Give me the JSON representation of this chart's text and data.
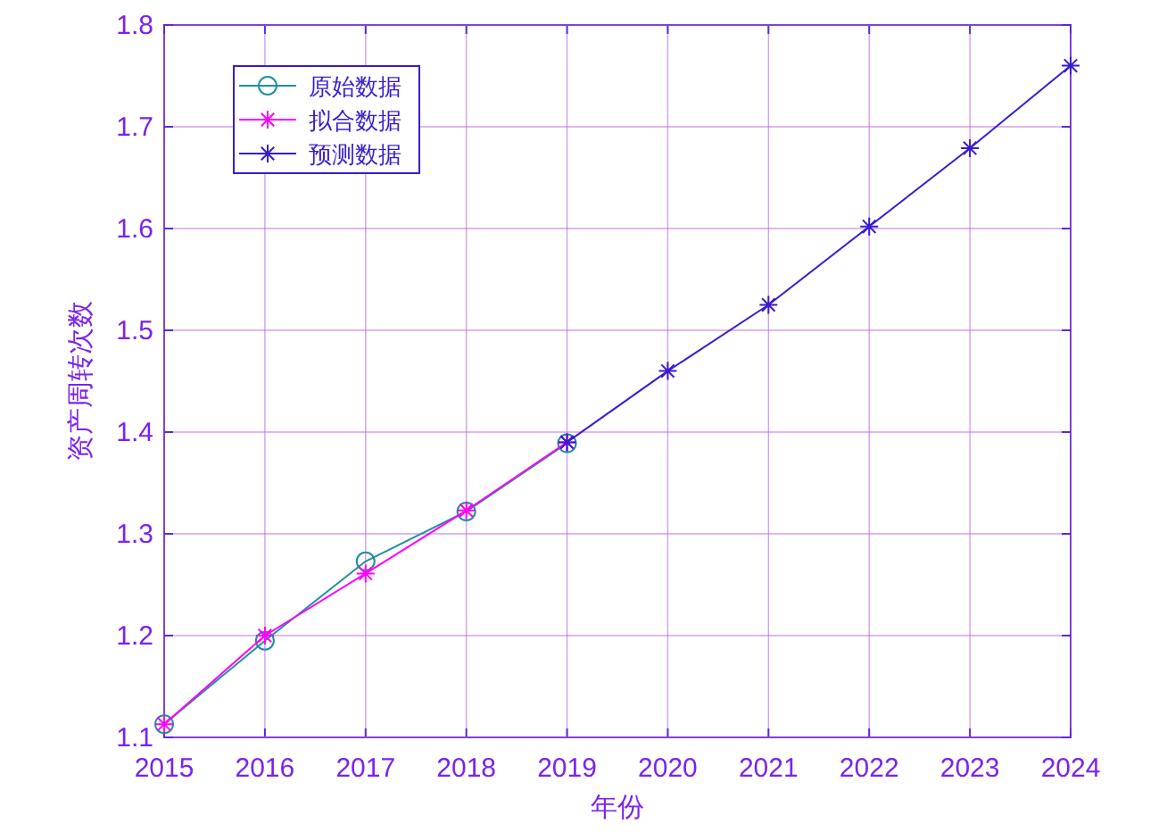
{
  "chart_data": {
    "type": "line",
    "xlabel": "年份",
    "ylabel": "资产周转次数",
    "xlim": [
      2015,
      2024
    ],
    "xticks": [
      2015,
      2016,
      2017,
      2018,
      2019,
      2020,
      2021,
      2022,
      2023,
      2024
    ],
    "ylim": [
      1.1,
      1.8
    ],
    "yticks": [
      1.1,
      1.2,
      1.3,
      1.4,
      1.5,
      1.6,
      1.7,
      1.8
    ],
    "grid": true,
    "legend": "top left",
    "series": [
      {
        "name": "原始数据",
        "color": "#1f8fa0",
        "marker": "circle",
        "x": [
          2015,
          2016,
          2017,
          2018,
          2019
        ],
        "values": [
          1.113,
          1.195,
          1.273,
          1.322,
          1.389
        ]
      },
      {
        "name": "拟合数据",
        "color": "#ff00ff",
        "marker": "cross",
        "x": [
          2015,
          2016,
          2017,
          2018,
          2019
        ],
        "values": [
          1.113,
          1.2,
          1.261,
          1.323,
          1.39
        ]
      },
      {
        "name": "预测数据",
        "color": "#3a1acf",
        "marker": "cross",
        "x": [
          2019,
          2020,
          2021,
          2022,
          2023,
          2024
        ],
        "values": [
          1.39,
          1.46,
          1.525,
          1.602,
          1.679,
          1.76
        ]
      }
    ]
  }
}
